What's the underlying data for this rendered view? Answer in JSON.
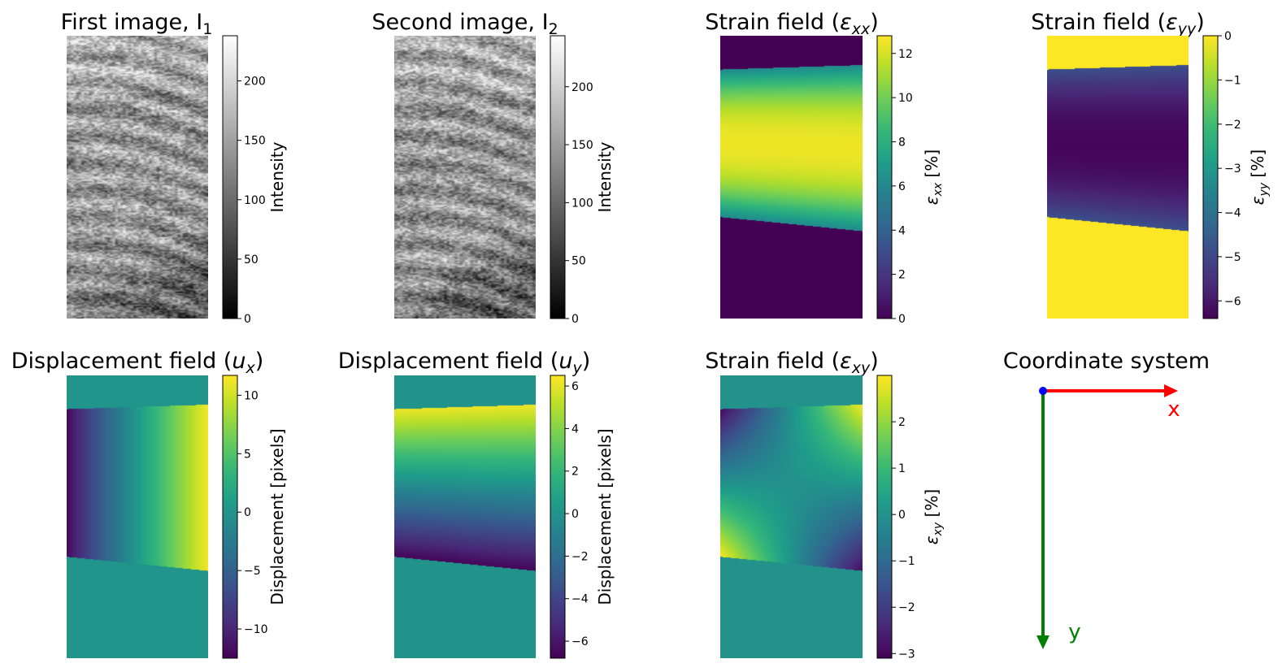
{
  "figure": {
    "background": "#ffffff"
  },
  "colormaps": {
    "viridis": [
      "#440154",
      "#482878",
      "#3e4989",
      "#31688e",
      "#26828e",
      "#1f9e89",
      "#35b779",
      "#6ece58",
      "#b5de2b",
      "#fde725"
    ],
    "gray": [
      "#000000",
      "#ffffff"
    ]
  },
  "chart_data": [
    {
      "id": "img1",
      "type": "heatmap",
      "title": "First image, I₁",
      "content": "grayscale ultrasound speckle image",
      "colormap": "gray",
      "colorbar": {
        "label": "Intensity",
        "range": [
          0,
          238
        ],
        "ticks": [
          0,
          50,
          100,
          150,
          200
        ],
        "tick_labels": [
          "0",
          "50",
          "100",
          "150",
          "200"
        ]
      }
    },
    {
      "id": "img2",
      "type": "heatmap",
      "title": "Second image, I₂",
      "content": "grayscale ultrasound speckle image",
      "colormap": "gray",
      "colorbar": {
        "label": "Intensity",
        "range": [
          0,
          244
        ],
        "ticks": [
          0,
          50,
          100,
          150,
          200
        ],
        "tick_labels": [
          "0",
          "50",
          "100",
          "150",
          "200"
        ]
      }
    },
    {
      "id": "exx",
      "type": "heatmap",
      "title": "Strain field (εxx)",
      "title_symbol": "ε",
      "title_subscript": "xx",
      "colormap": "viridis",
      "field": {
        "mode": "band_vertical",
        "outside": 0.0,
        "edge": 6.0,
        "center": 12.5
      },
      "colorbar": {
        "label": "εxx [%]",
        "label_symbol": "ε",
        "label_subscript": "xx",
        "label_unit": "[%]",
        "range": [
          0,
          12.8
        ],
        "ticks": [
          0,
          2,
          4,
          6,
          8,
          10,
          12
        ],
        "tick_labels": [
          "0",
          "2",
          "4",
          "6",
          "8",
          "10",
          "12"
        ]
      }
    },
    {
      "id": "eyy",
      "type": "heatmap",
      "title": "Strain field (εyy)",
      "title_symbol": "ε",
      "title_subscript": "yy",
      "colormap": "viridis",
      "field": {
        "mode": "band_vertical",
        "outside": 0.0,
        "edge": -4.8,
        "center": -6.3
      },
      "colorbar": {
        "label": "εyy [%]",
        "label_symbol": "ε",
        "label_subscript": "yy",
        "label_unit": "[%]",
        "range": [
          -6.4,
          0
        ],
        "ticks": [
          -6,
          -5,
          -4,
          -3,
          -2,
          -1,
          0
        ],
        "tick_labels": [
          "−6",
          "−5",
          "−4",
          "−3",
          "−2",
          "−1",
          "0"
        ]
      }
    },
    {
      "id": "ux",
      "type": "heatmap",
      "title": "Displacement field (ux)",
      "title_symbol": "u",
      "title_subscript": "x",
      "colormap": "viridis",
      "field": {
        "mode": "band_horizontal",
        "outside": 0.0,
        "left": -12.0,
        "right": 11.5
      },
      "colorbar": {
        "label": "Displacement [pixels]",
        "range": [
          -12.5,
          11.7
        ],
        "ticks": [
          -10,
          -5,
          0,
          5,
          10
        ],
        "tick_labels": [
          "−10",
          "−5",
          "0",
          "5",
          "10"
        ]
      }
    },
    {
      "id": "uy",
      "type": "heatmap",
      "title": "Displacement field (uy)",
      "title_symbol": "u",
      "title_subscript": "y",
      "colormap": "viridis",
      "field": {
        "mode": "band_gradient_y",
        "outside": 0.0,
        "top": 6.2,
        "bottom": -6.6
      },
      "colorbar": {
        "label": "Displacement [pixels]",
        "range": [
          -6.8,
          6.5
        ],
        "ticks": [
          -6,
          -4,
          -2,
          0,
          2,
          4,
          6
        ],
        "tick_labels": [
          "−6",
          "−4",
          "−2",
          "0",
          "2",
          "4",
          "6"
        ]
      }
    },
    {
      "id": "exy",
      "type": "heatmap",
      "title": "Strain field (εxy)",
      "title_symbol": "ε",
      "title_subscript": "xy",
      "colormap": "viridis",
      "field": {
        "mode": "band_saddle",
        "outside": 0.0,
        "amplitude": 3.0
      },
      "colorbar": {
        "label": "εxy [%]",
        "label_symbol": "ε",
        "label_subscript": "xy",
        "label_unit": "[%]",
        "range": [
          -3.1,
          3.0
        ],
        "ticks": [
          -3,
          -2,
          -1,
          0,
          1,
          2
        ],
        "tick_labels": [
          "−3",
          "−2",
          "−1",
          "0",
          "1",
          "2"
        ]
      }
    },
    {
      "id": "coord",
      "type": "diagram",
      "title": "Coordinate system",
      "origin_color": "#0000ff",
      "x_axis": {
        "label": "x",
        "color": "#ff0000"
      },
      "y_axis": {
        "label": "y",
        "color": "#008000"
      }
    }
  ]
}
